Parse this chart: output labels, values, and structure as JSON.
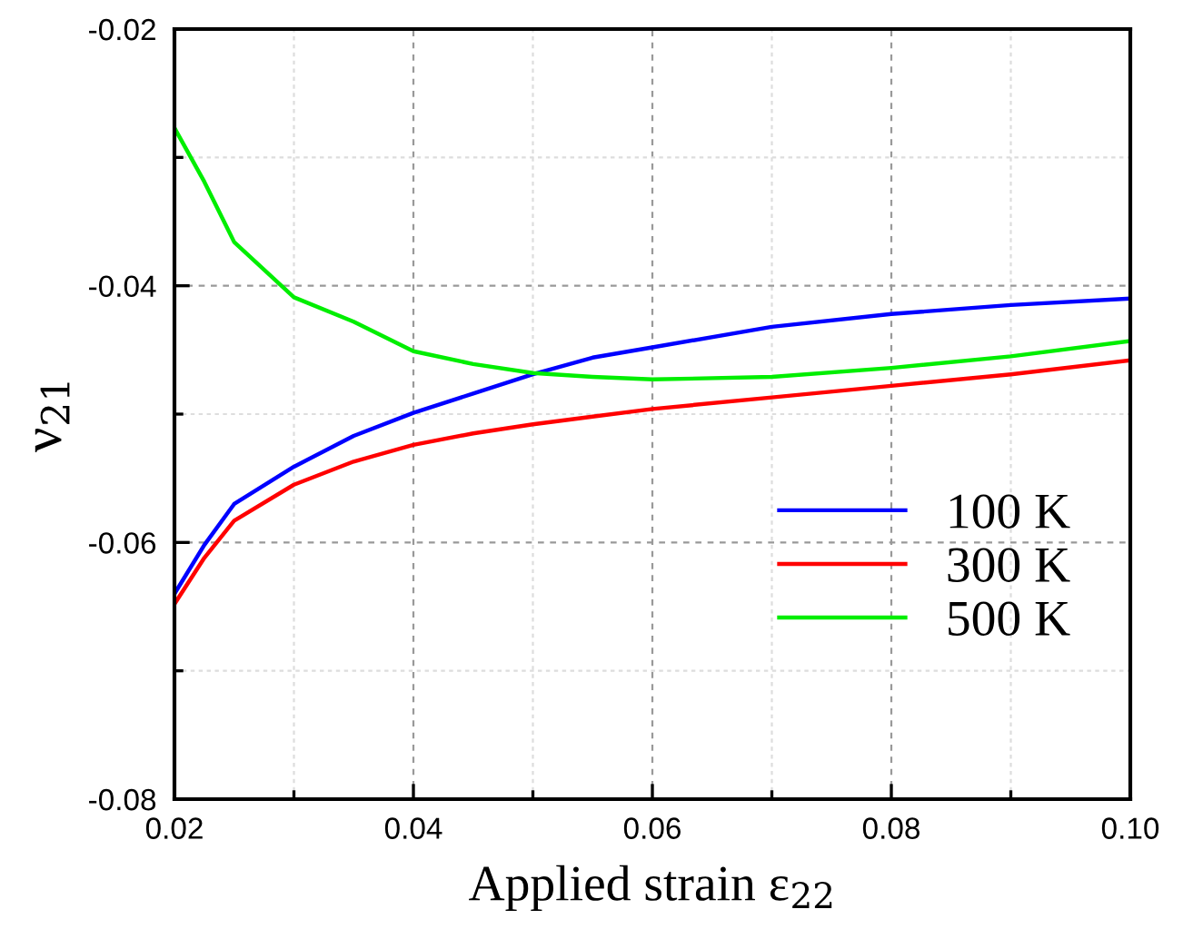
{
  "chart_data": {
    "type": "line",
    "xlabel": "Applied strain ε$_{22}$",
    "ylabel": "ν$_{21}$",
    "xlim": [
      0.02,
      0.1
    ],
    "xticks": [
      0.02,
      0.04,
      0.06,
      0.08,
      {
        "value": 0.1,
        "label": "0.10"
      }
    ],
    "ylim": [
      -0.08,
      -0.02
    ],
    "yticks": [
      -0.08,
      -0.06,
      -0.04,
      -0.02
    ],
    "grid": true,
    "legend": "bottom right",
    "line_style": "solid",
    "marker": "none",
    "x": [
      0.02,
      0.0225,
      0.025,
      0.03,
      0.035,
      0.04,
      0.045,
      0.05,
      0.055,
      0.06,
      0.07,
      0.08,
      0.09,
      0.1
    ],
    "series": [
      {
        "name": "100 K",
        "color": "#0000ff",
        "values": [
          -0.064,
          -0.0602,
          -0.057,
          -0.0541,
          -0.0517,
          -0.0499,
          -0.0484,
          -0.0469,
          -0.0456,
          -0.0448,
          -0.0432,
          -0.0422,
          -0.0415,
          -0.041
        ]
      },
      {
        "name": "300 K",
        "color": "#ff0000",
        "values": [
          -0.0648,
          -0.0612,
          -0.0583,
          -0.0555,
          -0.0537,
          -0.0524,
          -0.0515,
          -0.0508,
          -0.0502,
          -0.0496,
          -0.0487,
          -0.0478,
          -0.0469,
          -0.0458
        ]
      },
      {
        "name": "500 K",
        "color": "#00ee00",
        "values": [
          -0.0277,
          -0.0319,
          -0.0366,
          -0.0409,
          -0.0428,
          -0.0451,
          -0.0461,
          -0.0468,
          -0.0471,
          -0.0473,
          -0.0471,
          -0.0464,
          -0.0455,
          -0.0443
        ]
      }
    ]
  }
}
